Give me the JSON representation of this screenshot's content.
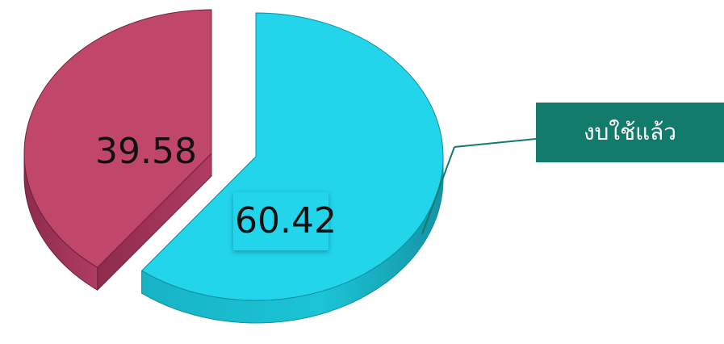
{
  "chart_data": {
    "type": "pie",
    "style": "3d-exploded",
    "slices": [
      {
        "value": 60.42,
        "label": "60.42",
        "color": "#22d5ea"
      },
      {
        "value": 39.58,
        "label": "39.58",
        "color": "#c0476a"
      }
    ],
    "callout": {
      "text": "งบใช้แล้ว",
      "color": "#137b6c",
      "points_to_slice": 0
    }
  }
}
